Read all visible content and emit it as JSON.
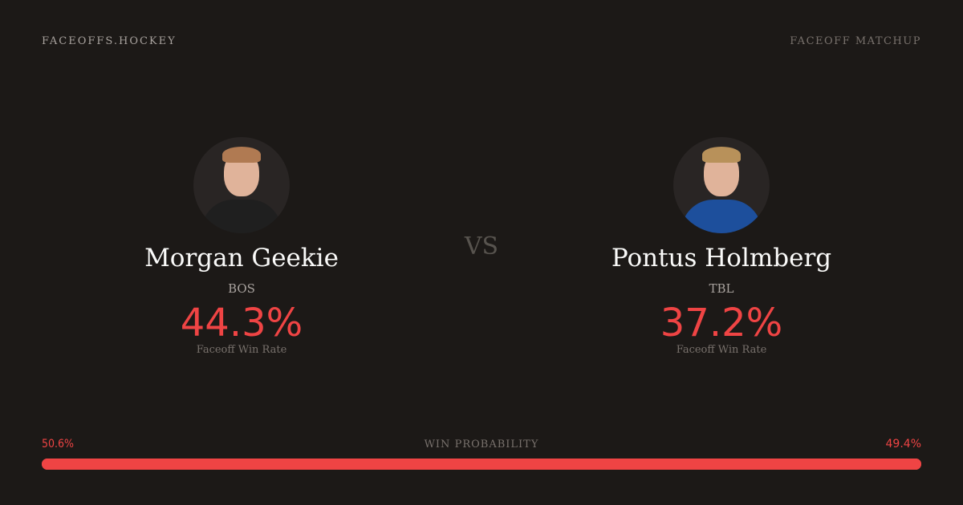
{
  "header": {
    "brand": "FACEOFFS.HOCKEY",
    "page_type": "FACEOFF MATCHUP"
  },
  "players": [
    {
      "name": "Morgan Geekie",
      "team": "BOS",
      "win_rate": "44.3%",
      "win_rate_label": "Faceoff Win Rate",
      "jersey_color": "#1f1f1f",
      "hair_color": "#b07a52"
    },
    {
      "name": "Pontus Holmberg",
      "team": "TBL",
      "win_rate": "37.2%",
      "win_rate_label": "Faceoff Win Rate",
      "jersey_color": "#1d4f9c",
      "hair_color": "#b8915a"
    }
  ],
  "vs_label": "VS",
  "win_probability": {
    "title": "WIN PROBABILITY",
    "left": "50.6%",
    "right": "49.4%",
    "left_value": 50.6,
    "right_value": 49.4,
    "left_color": "#ef4444",
    "right_color": "#ef4444"
  }
}
